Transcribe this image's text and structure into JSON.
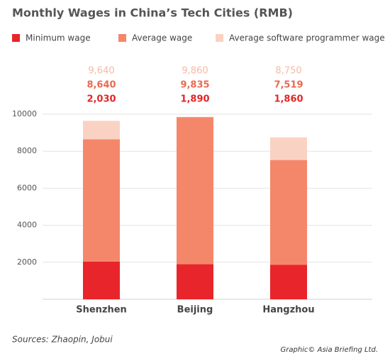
{
  "chart_data": {
    "type": "bar",
    "title": "Monthly Wages in China’s Tech Cities (RMB)",
    "categories": [
      "Shenzhen",
      "Beijing",
      "Hangzhou"
    ],
    "series": [
      {
        "name": "Minimum wage",
        "color": "#e8252b",
        "label_color": "#e0262a",
        "values": [
          2030,
          1890,
          1860
        ],
        "value_labels": [
          "2,030",
          "1,890",
          "1,860"
        ]
      },
      {
        "name": "Average wage",
        "color": "#f4876a",
        "label_color": "#e86a50",
        "values": [
          8640,
          9835,
          7519
        ],
        "value_labels": [
          "8,640",
          "9,835",
          "7,519"
        ]
      },
      {
        "name": "Average software programmer wage",
        "color": "#fad2c4",
        "label_color": "#f5b9a6",
        "values": [
          9640,
          9860,
          8750
        ],
        "value_labels": [
          "9,640",
          "9,860",
          "8,750"
        ]
      }
    ],
    "ylim": [
      0,
      10000
    ],
    "yticks": [
      2000,
      4000,
      6000,
      8000,
      10000
    ],
    "grid": true,
    "source": "Sources: Zhaopin, Jobui",
    "credit": "Graphic© Asia Briefing Ltd."
  }
}
